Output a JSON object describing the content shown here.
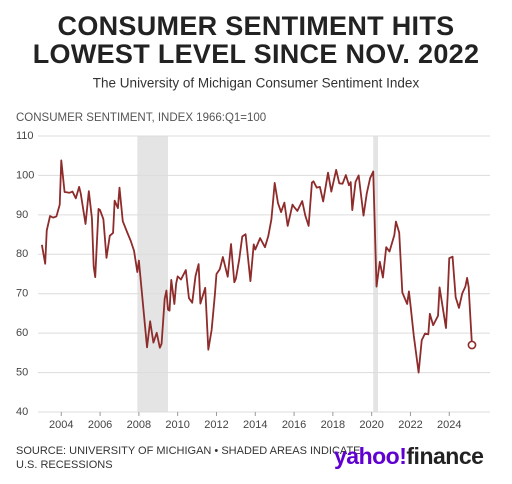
{
  "chart_data": {
    "type": "line",
    "title": [
      "CONSUMER SENTIMENT HITS",
      "LOWEST LEVEL SINCE NOV. 2022"
    ],
    "subtitle": "The University of Michigan Consumer Sentiment Index",
    "y_label": "CONSUMER SENTIMENT, INDEX 1966:Q1=100",
    "source": [
      "SOURCE: UNIVERSITY OF MICHIGAN • SHADED AREAS INDICATE",
      "U.S. RECESSIONS"
    ],
    "logo": [
      "yahoo!",
      "finance"
    ],
    "xlim": [
      2002.8,
      2026.1
    ],
    "xticks": [
      2004,
      2006,
      2008,
      2010,
      2012,
      2014,
      2016,
      2018,
      2020,
      2022,
      2024
    ],
    "ylim": [
      40,
      110
    ],
    "yticks": [
      40,
      50,
      60,
      70,
      80,
      90,
      100,
      110
    ],
    "grid": true,
    "recessions": [
      [
        2007.92,
        2009.5
      ],
      [
        2020.08,
        2020.33
      ]
    ],
    "series": [
      {
        "name": "Consumer sentiment",
        "color": "#8e2b2b",
        "x": [
          2003,
          2003.17,
          2003.25,
          2003.42,
          2003.58,
          2003.75,
          2003.92,
          2004,
          2004.17,
          2004.42,
          2004.58,
          2004.75,
          2004.92,
          2005,
          2005.25,
          2005.42,
          2005.58,
          2005.67,
          2005.75,
          2005.92,
          2006,
          2006.17,
          2006.33,
          2006.5,
          2006.67,
          2006.75,
          2006.92,
          2007,
          2007.17,
          2007.42,
          2007.58,
          2007.75,
          2007.92,
          2008,
          2008.17,
          2008.42,
          2008.58,
          2008.75,
          2008.92,
          2009.08,
          2009.17,
          2009.33,
          2009.42,
          2009.5,
          2009.58,
          2009.67,
          2009.83,
          2009.92,
          2010,
          2010.17,
          2010.42,
          2010.58,
          2010.75,
          2010.92,
          2011.08,
          2011.17,
          2011.42,
          2011.58,
          2011.75,
          2011.92,
          2012,
          2012.17,
          2012.33,
          2012.58,
          2012.75,
          2012.92,
          2013,
          2013.17,
          2013.33,
          2013.5,
          2013.75,
          2013.92,
          2014,
          2014.25,
          2014.5,
          2014.67,
          2014.83,
          2014.92,
          2015,
          2015.17,
          2015.33,
          2015.5,
          2015.67,
          2015.92,
          2016,
          2016.17,
          2016.42,
          2016.58,
          2016.75,
          2016.92,
          2017,
          2017.17,
          2017.33,
          2017.5,
          2017.75,
          2017.92,
          2018.17,
          2018.33,
          2018.5,
          2018.67,
          2018.83,
          2018.92,
          2019,
          2019.17,
          2019.33,
          2019.58,
          2019.75,
          2019.92,
          2020.08,
          2020.25,
          2020.42,
          2020.58,
          2020.75,
          2020.92,
          2021.17,
          2021.25,
          2021.42,
          2021.58,
          2021.83,
          2021.92,
          2022,
          2022.17,
          2022.42,
          2022.58,
          2022.75,
          2022.92,
          2023,
          2023.17,
          2023.42,
          2023.5,
          2023.75,
          2023.83,
          2023.92,
          2024,
          2024.17,
          2024.33,
          2024.5,
          2024.67,
          2024.83,
          2024.92,
          2025,
          2025.08,
          2025.17
        ],
        "values": [
          82.4,
          77.6,
          86,
          89.7,
          89.3,
          89.6,
          92.6,
          103.8,
          95.8,
          95.6,
          95.9,
          94.2,
          97.1,
          95.5,
          87.7,
          96,
          89.1,
          76.9,
          74.2,
          91.5,
          91.2,
          88.9,
          79.1,
          84.7,
          85.4,
          93.6,
          91.7,
          96.9,
          88.4,
          85.3,
          83.4,
          80.9,
          75.5,
          78.4,
          69.5,
          56.4,
          63,
          57.6,
          60.1,
          56.3,
          57.3,
          68.7,
          70.8,
          66,
          65.7,
          73.5,
          67.4,
          72.5,
          74.4,
          73.6,
          76,
          68.9,
          67.7,
          74.5,
          77.5,
          67.5,
          71.5,
          55.8,
          60.8,
          69.9,
          75,
          76.2,
          79.3,
          74.3,
          82.6,
          72.9,
          73.8,
          78.6,
          84.5,
          85.1,
          73.2,
          82.5,
          81.2,
          84.1,
          81.8,
          84.6,
          88.8,
          93.6,
          98.1,
          93,
          90.7,
          93.1,
          87.2,
          92.6,
          92,
          91,
          93.5,
          89.8,
          87.2,
          98.2,
          98.5,
          96.9,
          97.1,
          93.4,
          100.7,
          95.9,
          101.4,
          98,
          97.9,
          100.1,
          97.5,
          98.3,
          91.2,
          98.4,
          100,
          89.8,
          95.5,
          99.3,
          101,
          71.8,
          78.1,
          74.1,
          81.8,
          80.7,
          84.9,
          88.3,
          85.5,
          70.3,
          67.4,
          70.6,
          67.2,
          59.4,
          50,
          58.2,
          59.9,
          59.7,
          64.9,
          62,
          64.4,
          71.6,
          63.8,
          61.3,
          69.7,
          79,
          79.4,
          69.1,
          66.4,
          70.1,
          71.8,
          74,
          71.7,
          64.7,
          57
        ]
      }
    ]
  }
}
